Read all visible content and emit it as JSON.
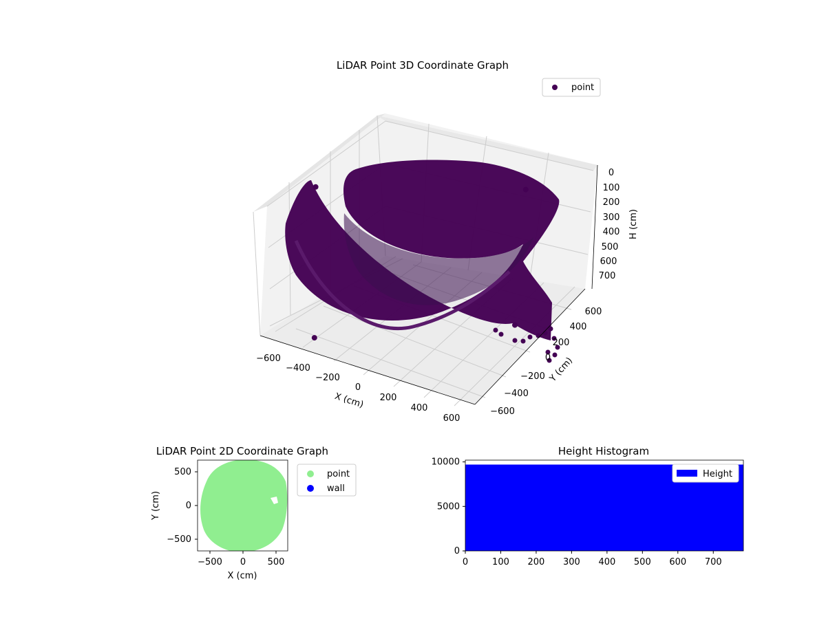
{
  "chart_data": [
    {
      "type": "scatter",
      "title": "LiDAR Point 3D Coordinate Graph",
      "xlabel": "X (cm)",
      "ylabel": "Y (cm)",
      "zlabel": "H (cm)",
      "x_ticks": [
        "−600",
        "−400",
        "−200",
        "0",
        "200",
        "400",
        "600"
      ],
      "y_ticks": [
        "−600",
        "−400",
        "−200",
        "0",
        "200",
        "400",
        "600"
      ],
      "z_ticks": [
        "0",
        "100",
        "200",
        "300",
        "400",
        "500",
        "600",
        "700"
      ],
      "xlim": [
        -650,
        650
      ],
      "ylim": [
        -650,
        650
      ],
      "zlim": [
        0,
        780
      ],
      "z_inverted": true,
      "grid": true,
      "legend": {
        "placement": "top-right",
        "entries": [
          {
            "label": "point",
            "color": "#440154"
          }
        ]
      },
      "series": [
        {
          "name": "point",
          "color": "#440154",
          "shape": "shell",
          "description_points": [
            {
              "x": -560,
              "y": -200,
              "h": 0
            },
            {
              "x": -400,
              "y": -550,
              "h": 700
            },
            {
              "x": 0,
              "y": -600,
              "h": 750
            },
            {
              "x": 400,
              "y": -450,
              "h": 720
            },
            {
              "x": 550,
              "y": 0,
              "h": 600
            },
            {
              "x": 400,
              "y": 450,
              "h": 50
            },
            {
              "x": 0,
              "y": 600,
              "h": 0
            },
            {
              "x": -400,
              "y": 450,
              "h": 0
            }
          ]
        }
      ]
    },
    {
      "type": "scatter",
      "title": "LiDAR Point 2D Coordinate Graph",
      "xlabel": "X (cm)",
      "ylabel": "Y (cm)",
      "x_ticks": [
        "−500",
        "0",
        "500"
      ],
      "y_ticks": [
        "500",
        "0",
        "−500"
      ],
      "xlim": [
        -680,
        680
      ],
      "ylim": [
        -680,
        680
      ],
      "legend": {
        "placement": "outside-right",
        "entries": [
          {
            "label": "point",
            "color": "#90ee90"
          },
          {
            "label": "wall",
            "color": "#0000ff"
          }
        ]
      },
      "series": [
        {
          "name": "point",
          "color": "#90ee90",
          "region": "ellipse",
          "center": [
            0,
            0
          ],
          "radii": [
            650,
            680
          ]
        },
        {
          "name": "wall",
          "color": "#0000ff",
          "values": []
        }
      ]
    },
    {
      "type": "bar",
      "title": "Height Histogram",
      "x_ticks": [
        "0",
        "100",
        "200",
        "300",
        "400",
        "500",
        "600",
        "700"
      ],
      "y_ticks": [
        "0",
        "5000",
        "10000"
      ],
      "xlim": [
        0,
        785
      ],
      "ylim": [
        0,
        10200
      ],
      "legend": {
        "placement": "top-right",
        "entries": [
          {
            "label": "Height",
            "color": "#0000ff"
          }
        ]
      },
      "series": [
        {
          "name": "Height",
          "color": "#0000ff",
          "bins": [
            {
              "from": 0,
              "to": 785,
              "count": 9700
            }
          ]
        }
      ]
    }
  ]
}
